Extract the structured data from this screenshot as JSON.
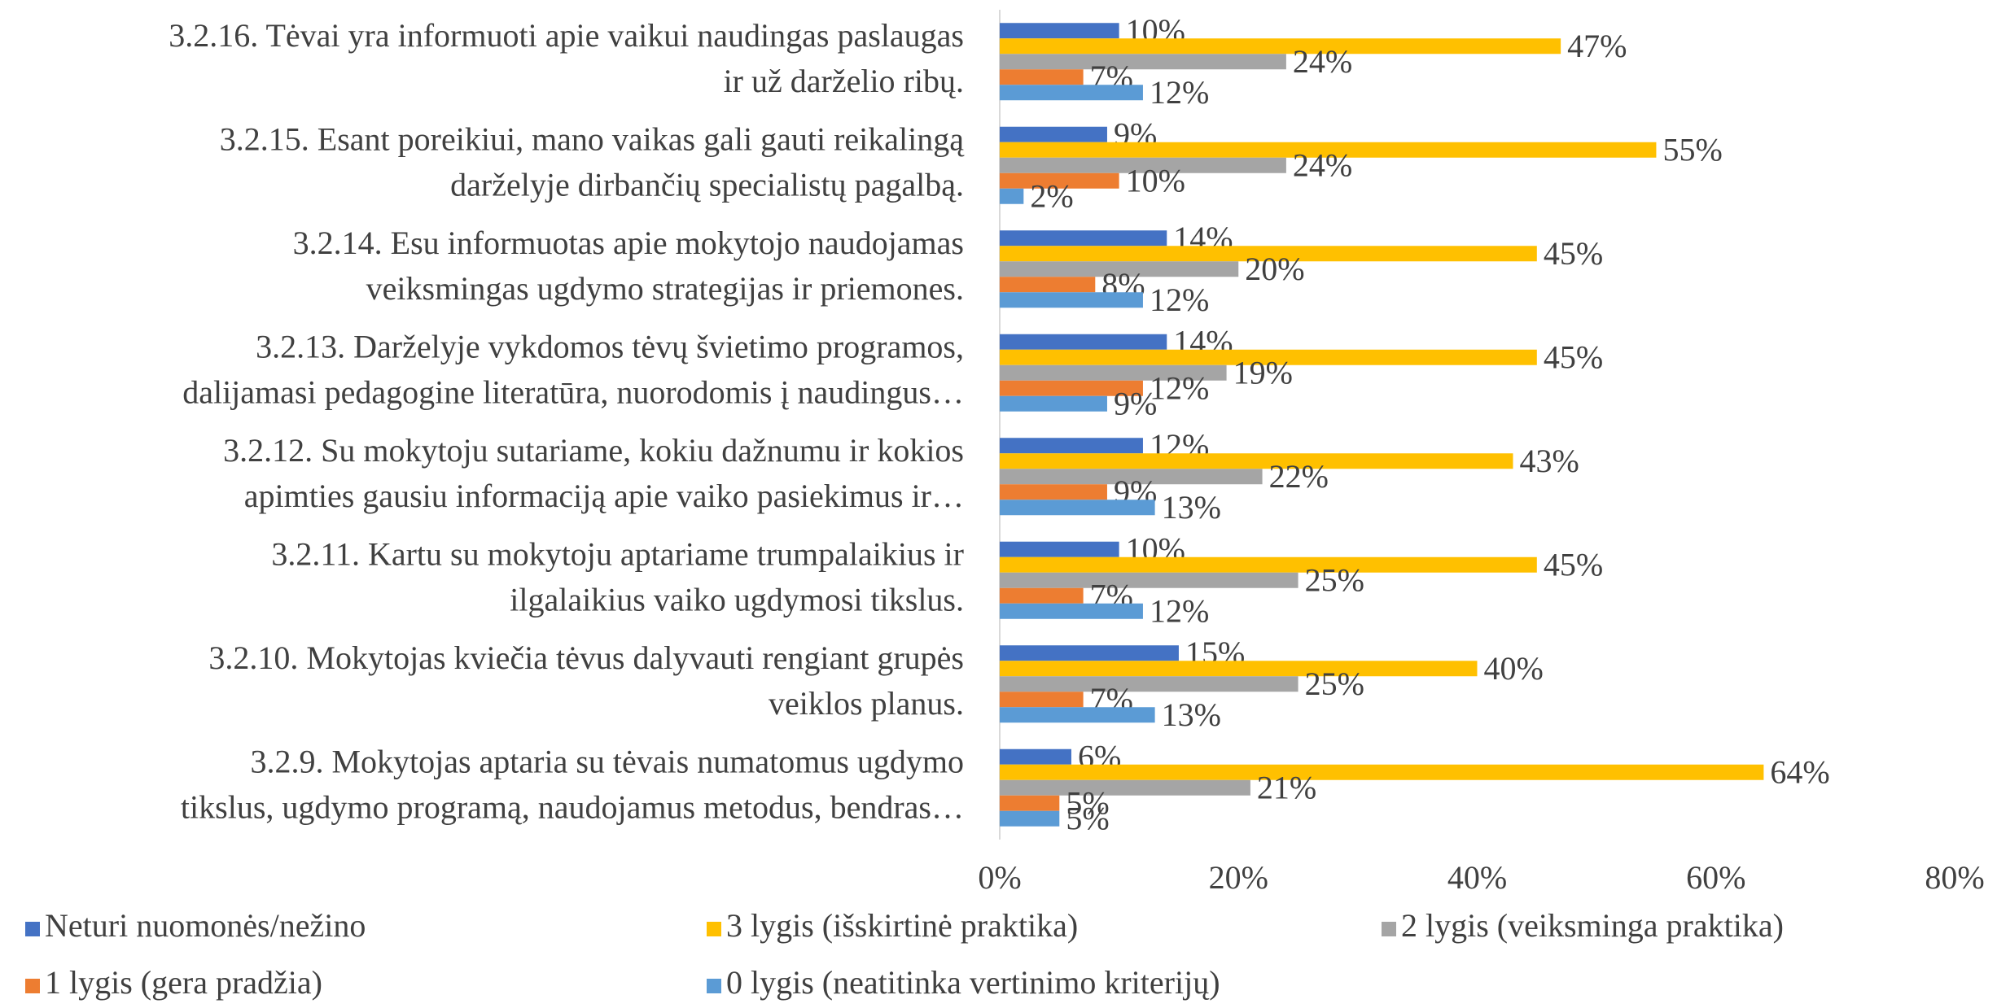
{
  "chart_data": {
    "type": "hbar",
    "categories": [
      "3.2.16. Tėvai yra informuoti apie vaikui naudingas paslaugas\nir už darželio ribų.",
      "3.2.15. Esant poreikiui, mano vaikas gali gauti reikalingą\ndarželyje dirbančių specialistų pagalbą.",
      "3.2.14. Esu informuotas apie mokytojo naudojamas\nveiksmingas ugdymo strategijas ir priemones.",
      "3.2.13. Darželyje vykdomos tėvų švietimo programos,\ndalijamasi pedagogine literatūra, nuorodomis į naudingus…",
      "3.2.12. Su mokytoju sutariame, kokiu dažnumu ir kokios\napimties gausiu informaciją apie vaiko pasiekimus ir…",
      "3.2.11. Kartu su mokytoju aptariame trumpalaikius ir\nilgalaikius vaiko ugdymosi tikslus.",
      "3.2.10. Mokytojas kviečia tėvus dalyvauti rengiant grupės\nveiklos planus.",
      "3.2.9. Mokytojas aptaria su tėvais numatomus ugdymo\ntikslus, ugdymo programą, naudojamus metodus, bendras…"
    ],
    "series": [
      {
        "name": "Neturi nuomonės/nežino",
        "color": "#4472c4",
        "values": [
          10,
          9,
          14,
          14,
          12,
          10,
          15,
          6
        ],
        "value_labels": [
          "10%",
          "9%",
          "14%",
          "14%",
          "12%",
          "10%",
          "15%",
          "6%"
        ]
      },
      {
        "name": "3 lygis (išskirtinė praktika)",
        "color": "#ffc000",
        "values": [
          47,
          55,
          45,
          45,
          43,
          45,
          40,
          64
        ],
        "value_labels": [
          "47%",
          "55%",
          "45%",
          "45%",
          "43%",
          "45%",
          "40%",
          "64%"
        ]
      },
      {
        "name": "2 lygis (veiksminga praktika)",
        "color": "#a5a5a5",
        "values": [
          24,
          24,
          20,
          19,
          22,
          25,
          25,
          21
        ],
        "value_labels": [
          "24%",
          "24%",
          "20%",
          "19%",
          "22%",
          "25%",
          "25%",
          "21%"
        ]
      },
      {
        "name": "1 lygis (gera pradžia)",
        "color": "#ed7d31",
        "values": [
          7,
          10,
          8,
          12,
          9,
          7,
          7,
          5
        ],
        "value_labels": [
          "7%",
          "10%",
          "8%",
          "12%",
          "9%",
          "7%",
          "7%",
          "5%"
        ]
      },
      {
        "name": "0 lygis (neatitinka vertinimo kriterijų)",
        "color": "#5b9bd5",
        "values": [
          12,
          2,
          12,
          9,
          13,
          12,
          13,
          5
        ],
        "value_labels": [
          "12%",
          "2%",
          "12%",
          "9%",
          "13%",
          "12%",
          "13%",
          "5%"
        ]
      }
    ],
    "xlim": [
      0,
      80
    ],
    "xticks": [
      {
        "value": 0,
        "label": "0%"
      },
      {
        "value": 20,
        "label": "20%"
      },
      {
        "value": 40,
        "label": "40%"
      },
      {
        "value": 60,
        "label": "60%"
      },
      {
        "value": 80,
        "label": "80%"
      }
    ],
    "legend": "bottom"
  }
}
